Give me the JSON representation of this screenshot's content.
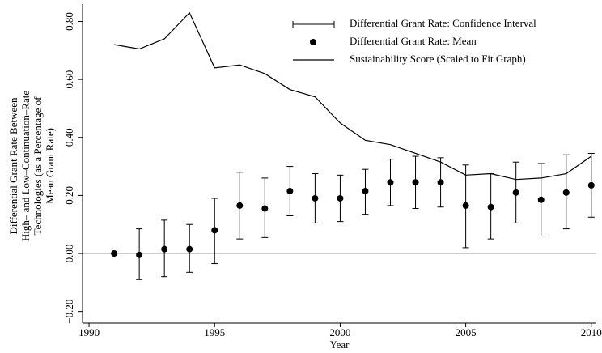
{
  "chart_data": {
    "type": "line",
    "xlabel": "Year",
    "ylabel": [
      "Differential Grant Rate Between",
      "High– and Low–Continuation–Rate",
      "Technologies (as a Percentage of",
      "Mean Grant Rate)"
    ],
    "x": [
      1991,
      1992,
      1993,
      1994,
      1995,
      1996,
      1997,
      1998,
      1999,
      2000,
      2001,
      2002,
      2003,
      2004,
      2005,
      2006,
      2007,
      2008,
      2009,
      2010
    ],
    "series": [
      {
        "name": "Differential Grant Rate: Confidence Interval",
        "type": "errorbar",
        "color": "#000000",
        "lower": [
          null,
          -0.09,
          -0.08,
          -0.065,
          -0.035,
          0.05,
          0.055,
          0.13,
          0.105,
          0.11,
          0.135,
          0.165,
          0.155,
          0.16,
          0.02,
          0.05,
          0.105,
          0.06,
          0.085,
          0.125
        ],
        "upper": [
          null,
          0.085,
          0.115,
          0.1,
          0.19,
          0.28,
          0.26,
          0.3,
          0.275,
          0.27,
          0.29,
          0.325,
          0.335,
          0.33,
          0.305,
          0.275,
          0.315,
          0.31,
          0.34,
          0.345
        ]
      },
      {
        "name": "Differential Grant Rate: Mean",
        "type": "scatter",
        "color": "#000000",
        "values": [
          0.0,
          -0.005,
          0.015,
          0.015,
          0.08,
          0.165,
          0.155,
          0.215,
          0.19,
          0.19,
          0.215,
          0.245,
          0.245,
          0.245,
          0.165,
          0.16,
          0.21,
          0.185,
          0.21,
          0.235
        ]
      },
      {
        "name": "Sustainability Score (Scaled to Fit Graph)",
        "type": "line",
        "color": "#000000",
        "values": [
          0.72,
          0.705,
          0.74,
          0.83,
          0.64,
          0.65,
          0.62,
          0.565,
          0.54,
          0.45,
          0.39,
          0.375,
          0.345,
          0.315,
          0.27,
          0.275,
          0.255,
          0.26,
          0.275,
          0.335
        ]
      }
    ],
    "xlim": [
      1989.74,
      2010.2
    ],
    "ylim": [
      -0.24,
      0.86
    ],
    "xticks": [
      1990,
      1995,
      2000,
      2005,
      2010
    ],
    "yticks": [
      {
        "value": -0.2,
        "label": "−0.20"
      },
      {
        "value": 0,
        "label": "0.00"
      },
      {
        "value": 0.2,
        "label": "0.20"
      },
      {
        "value": 0.4,
        "label": "0.40"
      },
      {
        "value": 0.6,
        "label": "0.60"
      },
      {
        "value": 0.8,
        "label": "0.80"
      }
    ],
    "reference_line": 0,
    "legend": "top-right"
  }
}
